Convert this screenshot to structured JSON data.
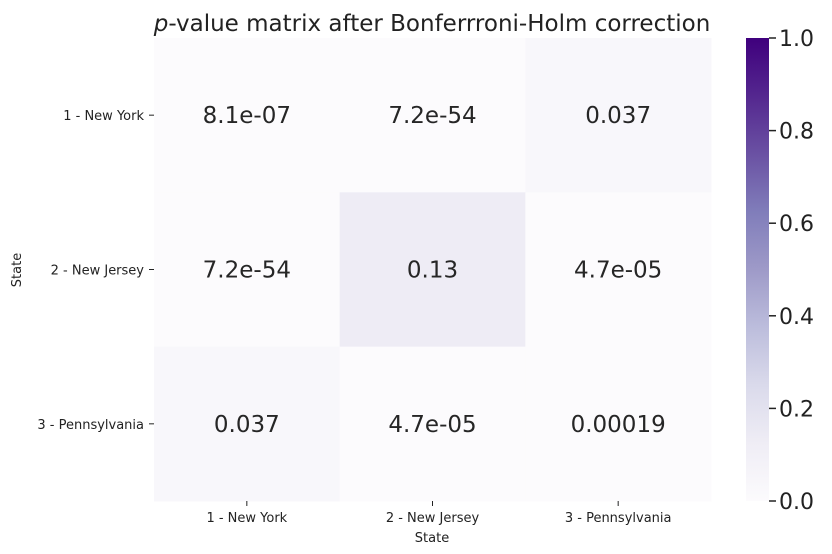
{
  "chart_data": {
    "type": "heatmap",
    "title_italic": "p",
    "title_rest": "-value matrix after Bonferrroni-Holm correction",
    "xlabel": "State",
    "ylabel": "State",
    "x_categories": [
      "1 - New York",
      "2 - New Jersey",
      "3 - Pennsylvania"
    ],
    "y_categories": [
      "1 - New York",
      "2 - New Jersey",
      "3 - Pennsylvania"
    ],
    "values": [
      [
        8.1e-07,
        7.2e-54,
        0.037
      ],
      [
        7.2e-54,
        0.13,
        4.7e-05
      ],
      [
        0.037,
        4.7e-05,
        0.00019
      ]
    ],
    "labels": [
      [
        "8.1e-07",
        "7.2e-54",
        "0.037"
      ],
      [
        "7.2e-54",
        "0.13",
        "4.7e-05"
      ],
      [
        "0.037",
        "4.7e-05",
        "0.00019"
      ]
    ],
    "colorbar": {
      "range": [
        0.0,
        1.0
      ],
      "ticks": [
        "0.0",
        "0.2",
        "0.4",
        "0.6",
        "0.8",
        "1.0"
      ],
      "colormap": "Purples",
      "color_low": "#fcfbfd",
      "color_high": "#3f007d"
    }
  }
}
